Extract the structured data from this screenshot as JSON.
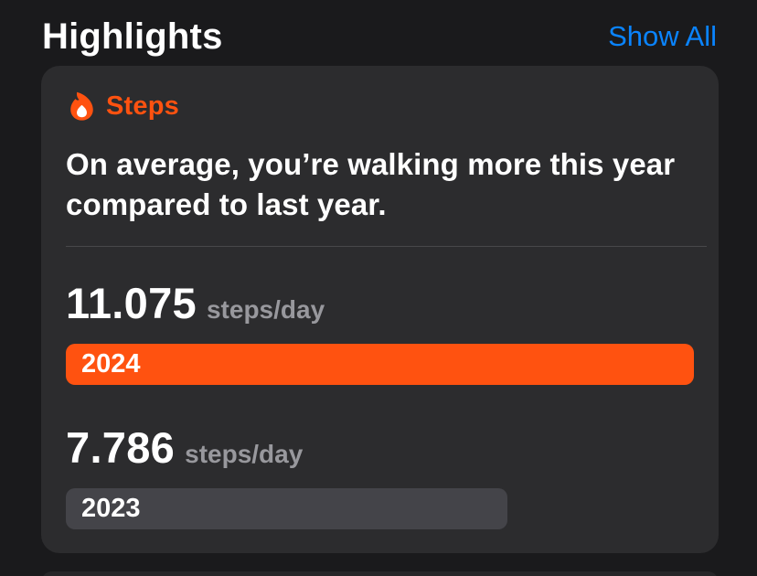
{
  "header": {
    "title": "Highlights",
    "show_all_label": "Show All"
  },
  "card": {
    "category": {
      "icon": "flame-icon",
      "label": "Steps"
    },
    "description": "On average, you’re walking more this year compared to last year.",
    "comparison": {
      "rows": [
        {
          "value": "11.075",
          "unit": "steps/day",
          "year": "2024",
          "bar_percent": 100,
          "bar_color": "#ff5210"
        },
        {
          "value": "7.786",
          "unit": "steps/day",
          "year": "2023",
          "bar_percent": 70.3,
          "bar_color": "#444449"
        }
      ]
    }
  },
  "colors": {
    "accent_orange": "#ff5210",
    "link_blue": "#0a84ff",
    "page_background": "#1a1a1c",
    "card_background": "#2c2c2e",
    "muted_text": "#98989d"
  }
}
